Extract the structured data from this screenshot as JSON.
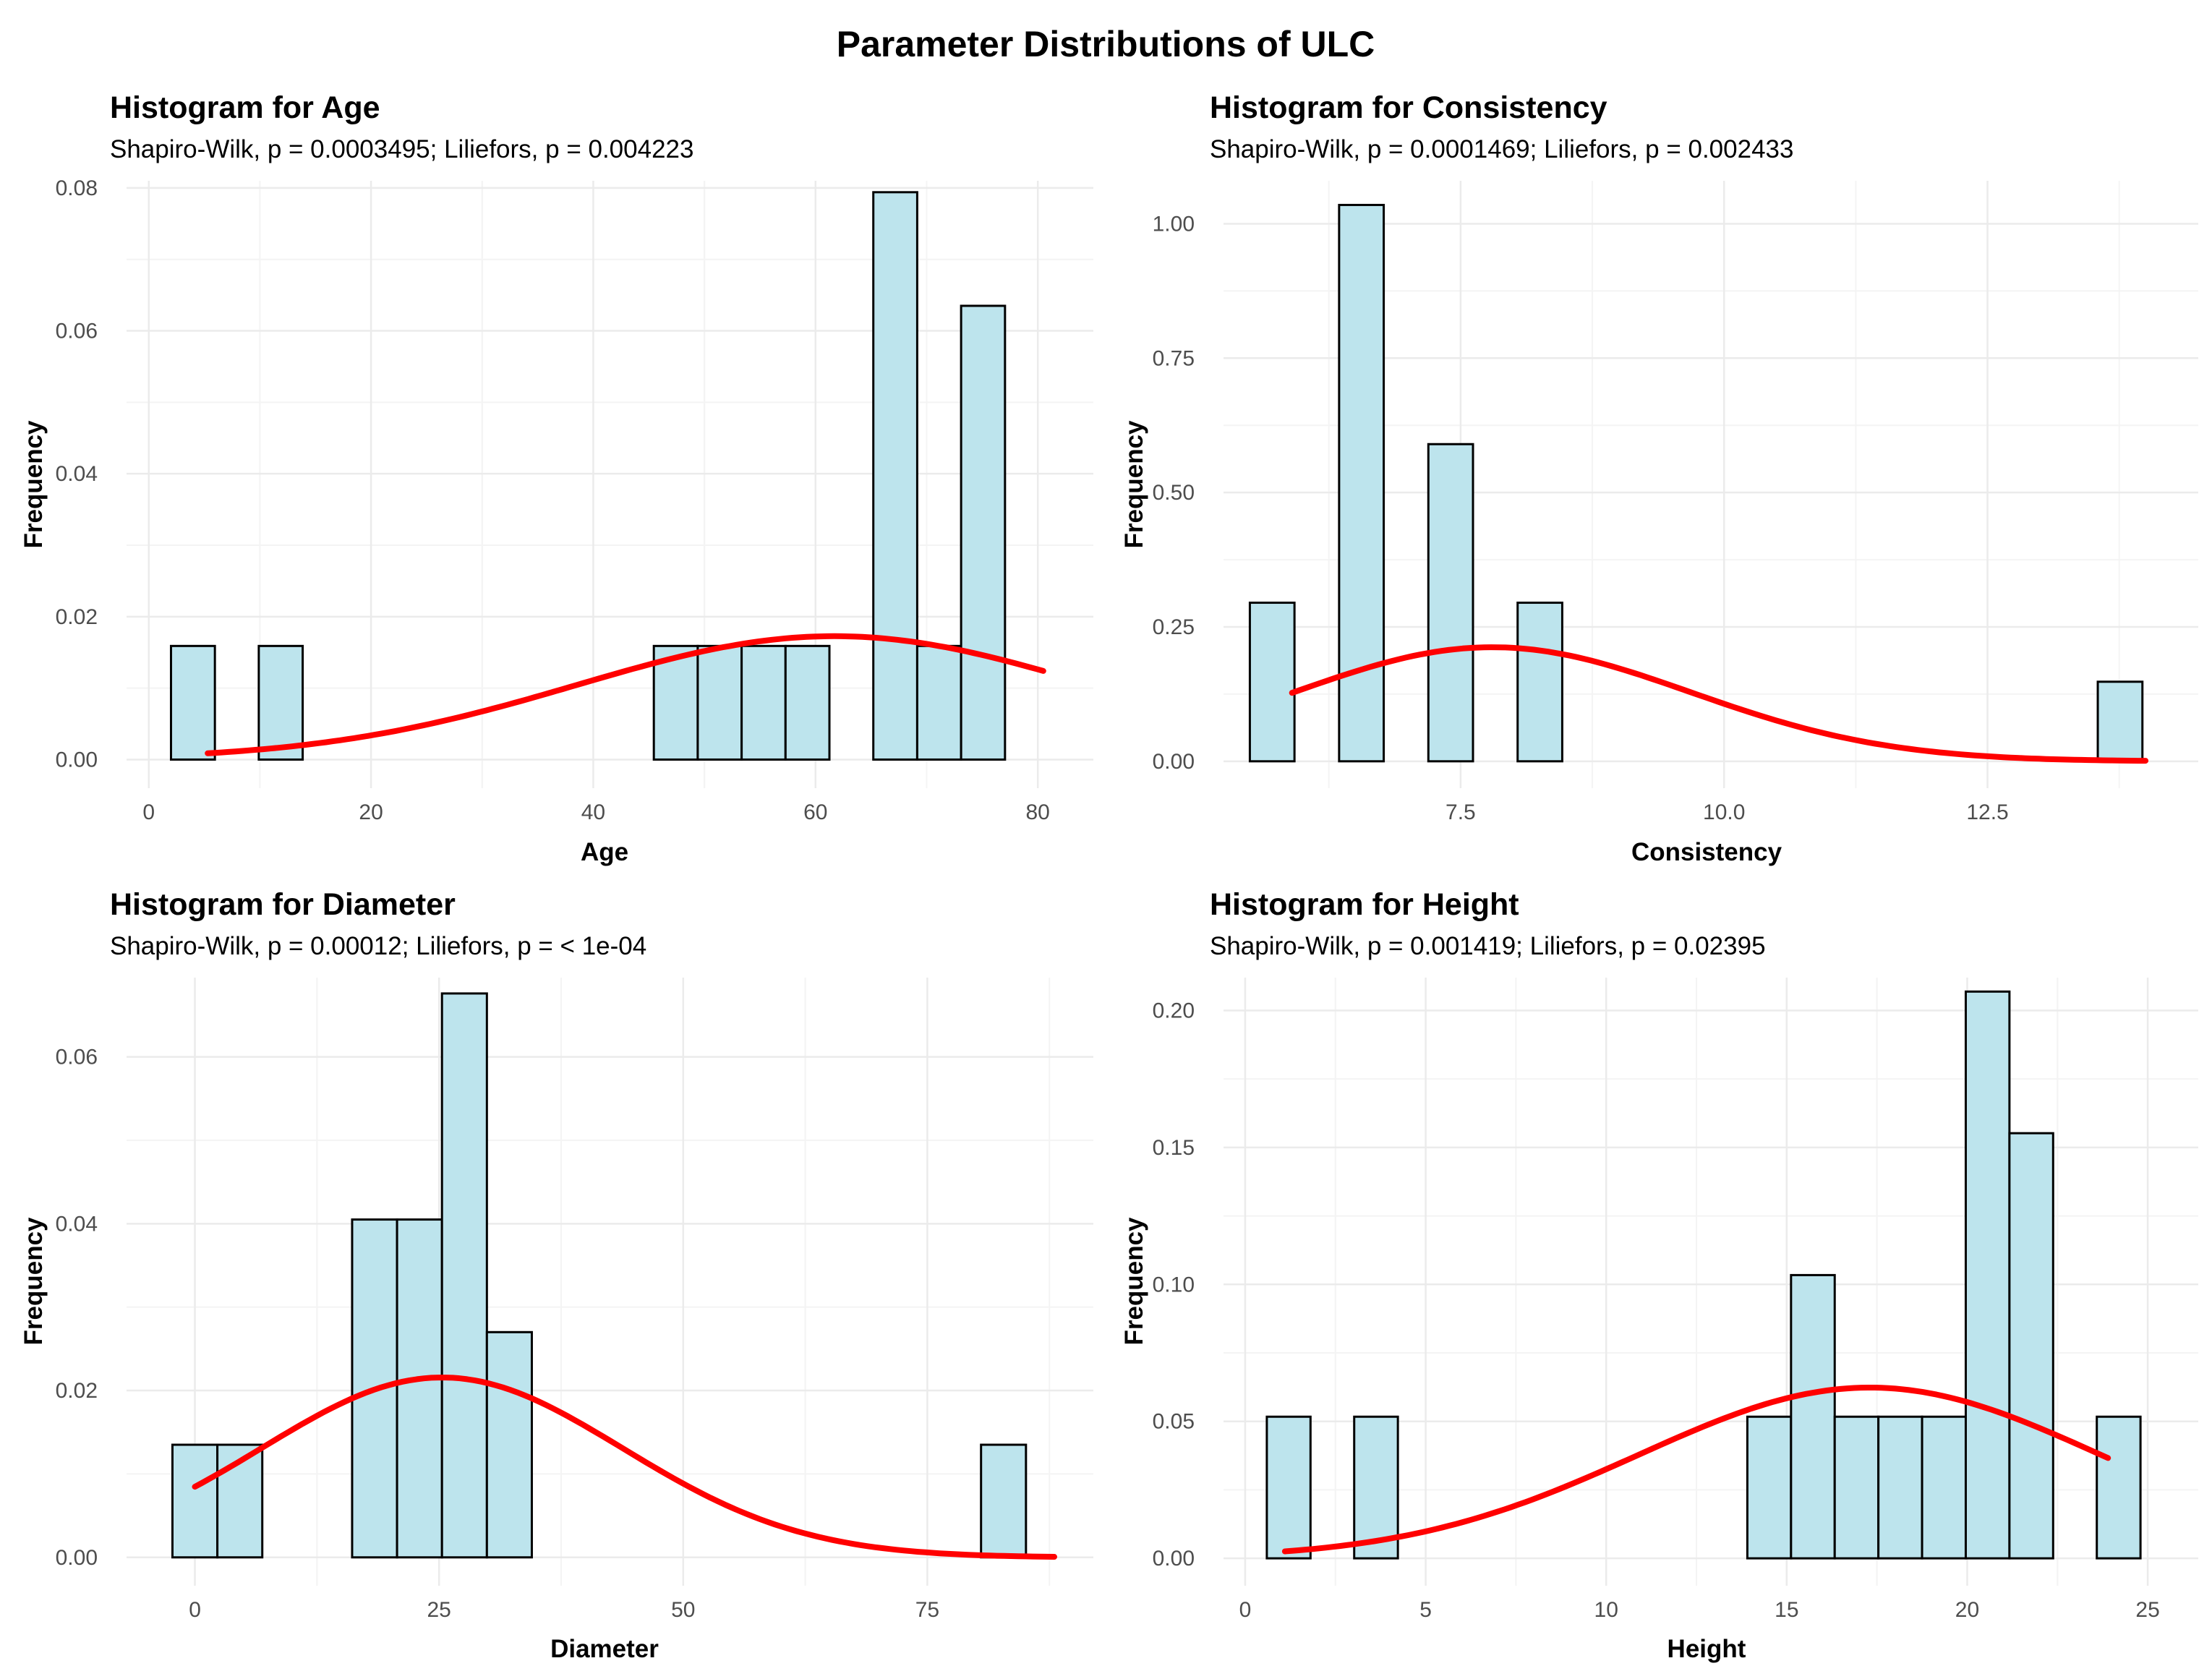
{
  "figure_title": "Parameter Distributions of ULC",
  "colors": {
    "bar_fill": "#bde4ed",
    "bar_stroke": "#000000",
    "curve": "#ff0000",
    "grid_major": "#ebebeb",
    "grid_minor": "#f4f4f4",
    "tick_text": "#4d4d4d"
  },
  "chart_data": [
    {
      "type": "bar",
      "title": "Histogram for Age",
      "subtitle": "Shapiro-Wilk, p = 0.0003495; Liliefors, p = 0.004223",
      "xlabel": "Age",
      "ylabel": "Frequency",
      "xlim": [
        -2,
        85
      ],
      "ylim": [
        -0.004,
        0.081
      ],
      "xticks": [
        0,
        20,
        40,
        60,
        80
      ],
      "xtick_labels": [
        "0",
        "20",
        "40",
        "60",
        "80"
      ],
      "yticks": [
        0,
        0.02,
        0.04,
        0.06,
        0.08
      ],
      "ytick_labels": [
        "0.00",
        "0.02",
        "0.04",
        "0.06",
        "0.08"
      ],
      "bin_start": 2,
      "bin_width": 3.95,
      "values": [
        0.0159,
        0,
        0.0159,
        0,
        0,
        0,
        0,
        0,
        0,
        0,
        0,
        0.0159,
        0.0159,
        0.0159,
        0.0159,
        0,
        0.0794,
        0.0159,
        0.0635
      ],
      "normal_curve": {
        "mean": 61.7,
        "sd": 23.1,
        "x_from": 5.3,
        "x_to": 80.5
      }
    },
    {
      "type": "bar",
      "title": "Histogram for Consistency",
      "subtitle": "Shapiro-Wilk, p = 0.0001469; Liliefors, p = 0.002433",
      "xlabel": "Consistency",
      "ylabel": "Frequency",
      "xlim": [
        5.25,
        14.5
      ],
      "ylim": [
        -0.05,
        1.08
      ],
      "xticks": [
        7.5,
        10,
        12.5
      ],
      "xtick_labels": [
        "7.5",
        "10.0",
        "12.5"
      ],
      "yticks": [
        0,
        0.25,
        0.5,
        0.75,
        1.0
      ],
      "ytick_labels": [
        "0.00",
        "0.25",
        "0.50",
        "0.75",
        "1.00"
      ],
      "bin_start": 5.5,
      "bin_width": 0.4235,
      "values": [
        0.295,
        0,
        1.035,
        0,
        0.59,
        0,
        0.295,
        0,
        0,
        0,
        0,
        0,
        0,
        0,
        0,
        0,
        0,
        0,
        0,
        0.148
      ],
      "normal_curve": {
        "mean": 7.8,
        "sd": 1.88,
        "x_from": 5.9,
        "x_to": 14.0
      }
    },
    {
      "type": "bar",
      "title": "Histogram for Diameter",
      "subtitle": "Shapiro-Wilk, p = 0.00012; Liliefors, p = < 1e-04",
      "xlabel": "Diameter",
      "ylabel": "Frequency",
      "xlim": [
        -7,
        92
      ],
      "ylim": [
        -0.0034,
        0.0695
      ],
      "xticks": [
        0,
        25,
        50,
        75
      ],
      "xtick_labels": [
        "0",
        "25",
        "50",
        "75"
      ],
      "yticks": [
        0,
        0.02,
        0.04,
        0.06
      ],
      "ytick_labels": [
        "0.00",
        "0.02",
        "0.04",
        "0.06"
      ],
      "bin_start": -2.3,
      "bin_width": 4.6,
      "values": [
        0.0135,
        0.0135,
        0,
        0,
        0.0405,
        0.0405,
        0.0676,
        0.027,
        0,
        0,
        0,
        0,
        0,
        0,
        0,
        0,
        0,
        0,
        0.0135
      ],
      "normal_curve": {
        "mean": 25.3,
        "sd": 18.5,
        "x_from": 0,
        "x_to": 88
      }
    },
    {
      "type": "bar",
      "title": "Histogram for Height",
      "subtitle": "Shapiro-Wilk, p = 0.001419; Liliefors, p = 0.02395",
      "xlabel": "Height",
      "ylabel": "Frequency",
      "xlim": [
        -0.6,
        26.4
      ],
      "ylim": [
        -0.01,
        0.212
      ],
      "xticks": [
        0,
        5,
        10,
        15,
        20,
        25
      ],
      "xtick_labels": [
        "0",
        "5",
        "10",
        "15",
        "20",
        "25"
      ],
      "yticks": [
        0,
        0.05,
        0.1,
        0.15,
        0.2
      ],
      "ytick_labels": [
        "0.00",
        "0.05",
        "0.10",
        "0.15",
        "0.20"
      ],
      "bin_start": 0.6,
      "bin_width": 1.21,
      "values": [
        0.0517,
        0,
        0.0517,
        0,
        0,
        0,
        0,
        0,
        0,
        0,
        0,
        0.0517,
        0.1034,
        0.0517,
        0.0517,
        0.0517,
        0.2069,
        0.1552,
        0,
        0.0517
      ],
      "normal_curve": {
        "mean": 17.3,
        "sd": 6.4,
        "x_from": 1.1,
        "x_to": 23.9
      }
    }
  ]
}
